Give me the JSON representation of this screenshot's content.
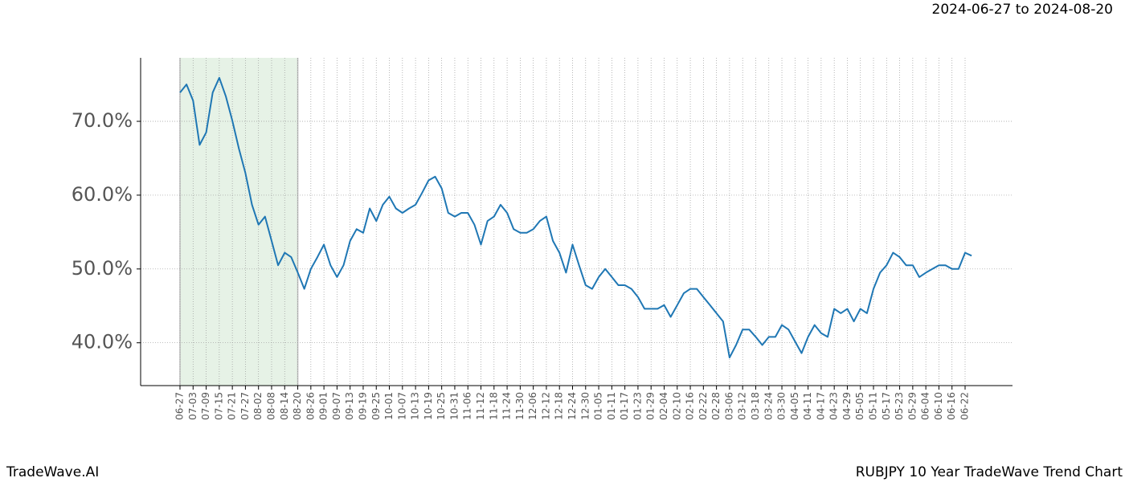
{
  "chart_data": {
    "type": "line",
    "subtitle": "2024-06-27 to 2024-08-20",
    "brand": "TradeWave.AI",
    "caption": "RUBJPY 10 Year TradeWave Trend Chart",
    "categories": [
      "06-27",
      null,
      "07-03",
      null,
      "07-09",
      null,
      "07-15",
      null,
      "07-21",
      null,
      "07-27",
      null,
      "08-02",
      null,
      "08-08",
      null,
      "08-14",
      null,
      "08-20",
      null,
      "08-26",
      null,
      "09-01",
      null,
      "09-07",
      null,
      "09-13",
      null,
      "09-19",
      null,
      "09-25",
      null,
      "10-01",
      null,
      "10-07",
      null,
      "10-13",
      null,
      "10-19",
      null,
      "10-25",
      null,
      "10-31",
      null,
      "11-06",
      null,
      "11-12",
      null,
      "11-18",
      null,
      "11-24",
      null,
      "11-30",
      null,
      "12-06",
      null,
      "12-12",
      null,
      "12-18",
      null,
      "12-24",
      null,
      "12-30",
      null,
      "01-05",
      null,
      "01-11",
      null,
      "01-17",
      null,
      "01-23",
      null,
      "01-29",
      null,
      "02-04",
      null,
      "02-10",
      null,
      "02-16",
      null,
      "02-22",
      null,
      "02-28",
      null,
      "03-06",
      null,
      "03-12",
      null,
      "03-18",
      null,
      "03-24",
      null,
      "03-30",
      null,
      "04-05",
      null,
      "04-11",
      null,
      "04-17",
      null,
      "04-23",
      null,
      "04-29",
      null,
      "05-05",
      null,
      "05-11",
      null,
      "05-17",
      null,
      "05-23",
      null,
      "05-29",
      null,
      "06-04",
      null,
      "06-10",
      null,
      "06-16",
      null,
      "06-22",
      null
    ],
    "values": [
      73.9,
      75.0,
      72.8,
      66.8,
      68.5,
      73.9,
      75.9,
      73.4,
      70.1,
      66.3,
      63.0,
      58.7,
      56.0,
      57.1,
      53.8,
      50.5,
      52.2,
      51.6,
      49.5,
      47.3,
      50.0,
      51.6,
      53.3,
      50.5,
      48.9,
      50.5,
      53.8,
      55.4,
      54.9,
      58.2,
      56.5,
      58.7,
      59.8,
      58.2,
      57.6,
      58.2,
      58.7,
      60.3,
      62.0,
      62.5,
      60.9,
      57.6,
      57.1,
      57.6,
      57.6,
      56.0,
      53.3,
      56.5,
      57.1,
      58.7,
      57.6,
      55.4,
      54.9,
      54.9,
      55.4,
      56.5,
      57.1,
      53.8,
      52.2,
      49.5,
      53.3,
      50.5,
      47.8,
      47.3,
      48.9,
      50.0,
      48.9,
      47.8,
      47.8,
      47.3,
      46.2,
      44.6,
      44.6,
      44.6,
      45.1,
      43.5,
      45.1,
      46.7,
      47.3,
      47.3,
      46.2,
      45.1,
      44.0,
      42.9,
      38.0,
      39.7,
      41.8,
      41.8,
      40.8,
      39.7,
      40.8,
      40.8,
      42.4,
      41.8,
      40.2,
      38.6,
      40.8,
      42.4,
      41.3,
      40.8,
      44.6,
      44.0,
      44.6,
      42.9,
      44.6,
      44.0,
      47.3,
      49.5,
      50.5,
      52.2,
      51.6,
      50.5,
      50.5,
      48.9,
      49.5,
      50.0,
      50.5,
      50.5,
      50.0,
      50.0,
      52.2,
      51.8
    ],
    "color": "#1f77b4",
    "ylim": [
      34.2,
      78.6
    ],
    "yticks": [
      {
        "value": 40,
        "label": "40.0%"
      },
      {
        "value": 50,
        "label": "50.0%"
      },
      {
        "value": 60,
        "label": "60.0%"
      },
      {
        "value": 70,
        "label": "70.0%"
      }
    ],
    "grid": true,
    "shade": {
      "from": "06-27",
      "to": "08-20",
      "color": "#e6f2e6"
    }
  }
}
